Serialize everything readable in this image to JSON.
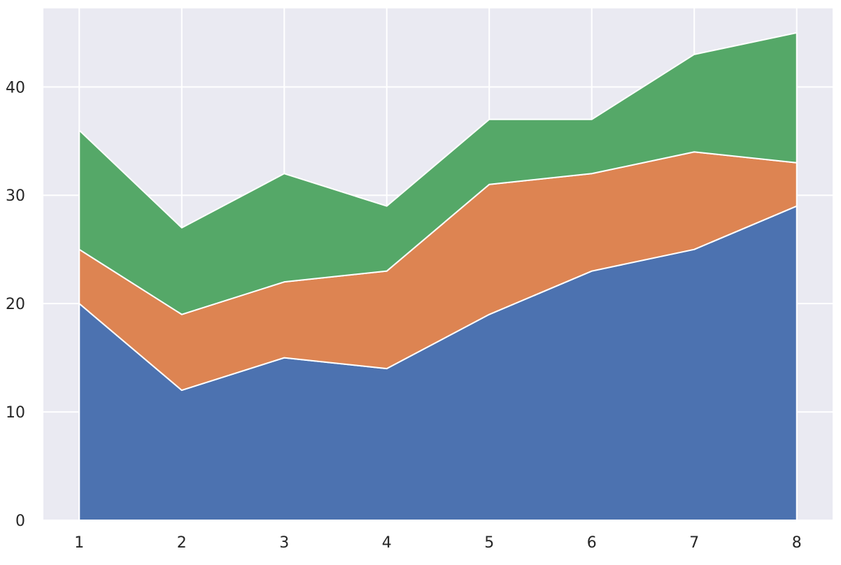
{
  "chart_data": {
    "type": "area",
    "stacked": true,
    "x": [
      1,
      2,
      3,
      4,
      5,
      6,
      7,
      8
    ],
    "series": [
      {
        "values": [
          20,
          12,
          15,
          14,
          19,
          23,
          25,
          29
        ],
        "color": "#4c72b0"
      },
      {
        "values": [
          5,
          7,
          7,
          9,
          12,
          9,
          9,
          4
        ],
        "color": "#dd8452"
      },
      {
        "values": [
          11,
          8,
          10,
          6,
          6,
          5,
          9,
          12
        ],
        "color": "#55a868"
      }
    ],
    "xticks": [
      1,
      2,
      3,
      4,
      5,
      6,
      7,
      8
    ],
    "yticks": [
      0,
      10,
      20,
      30,
      40
    ],
    "xlim": [
      0.65,
      8.35
    ],
    "ylim": [
      0,
      47.25
    ],
    "grid": true,
    "background_color": "#eaeaf2",
    "grid_color": "#ffffff"
  }
}
